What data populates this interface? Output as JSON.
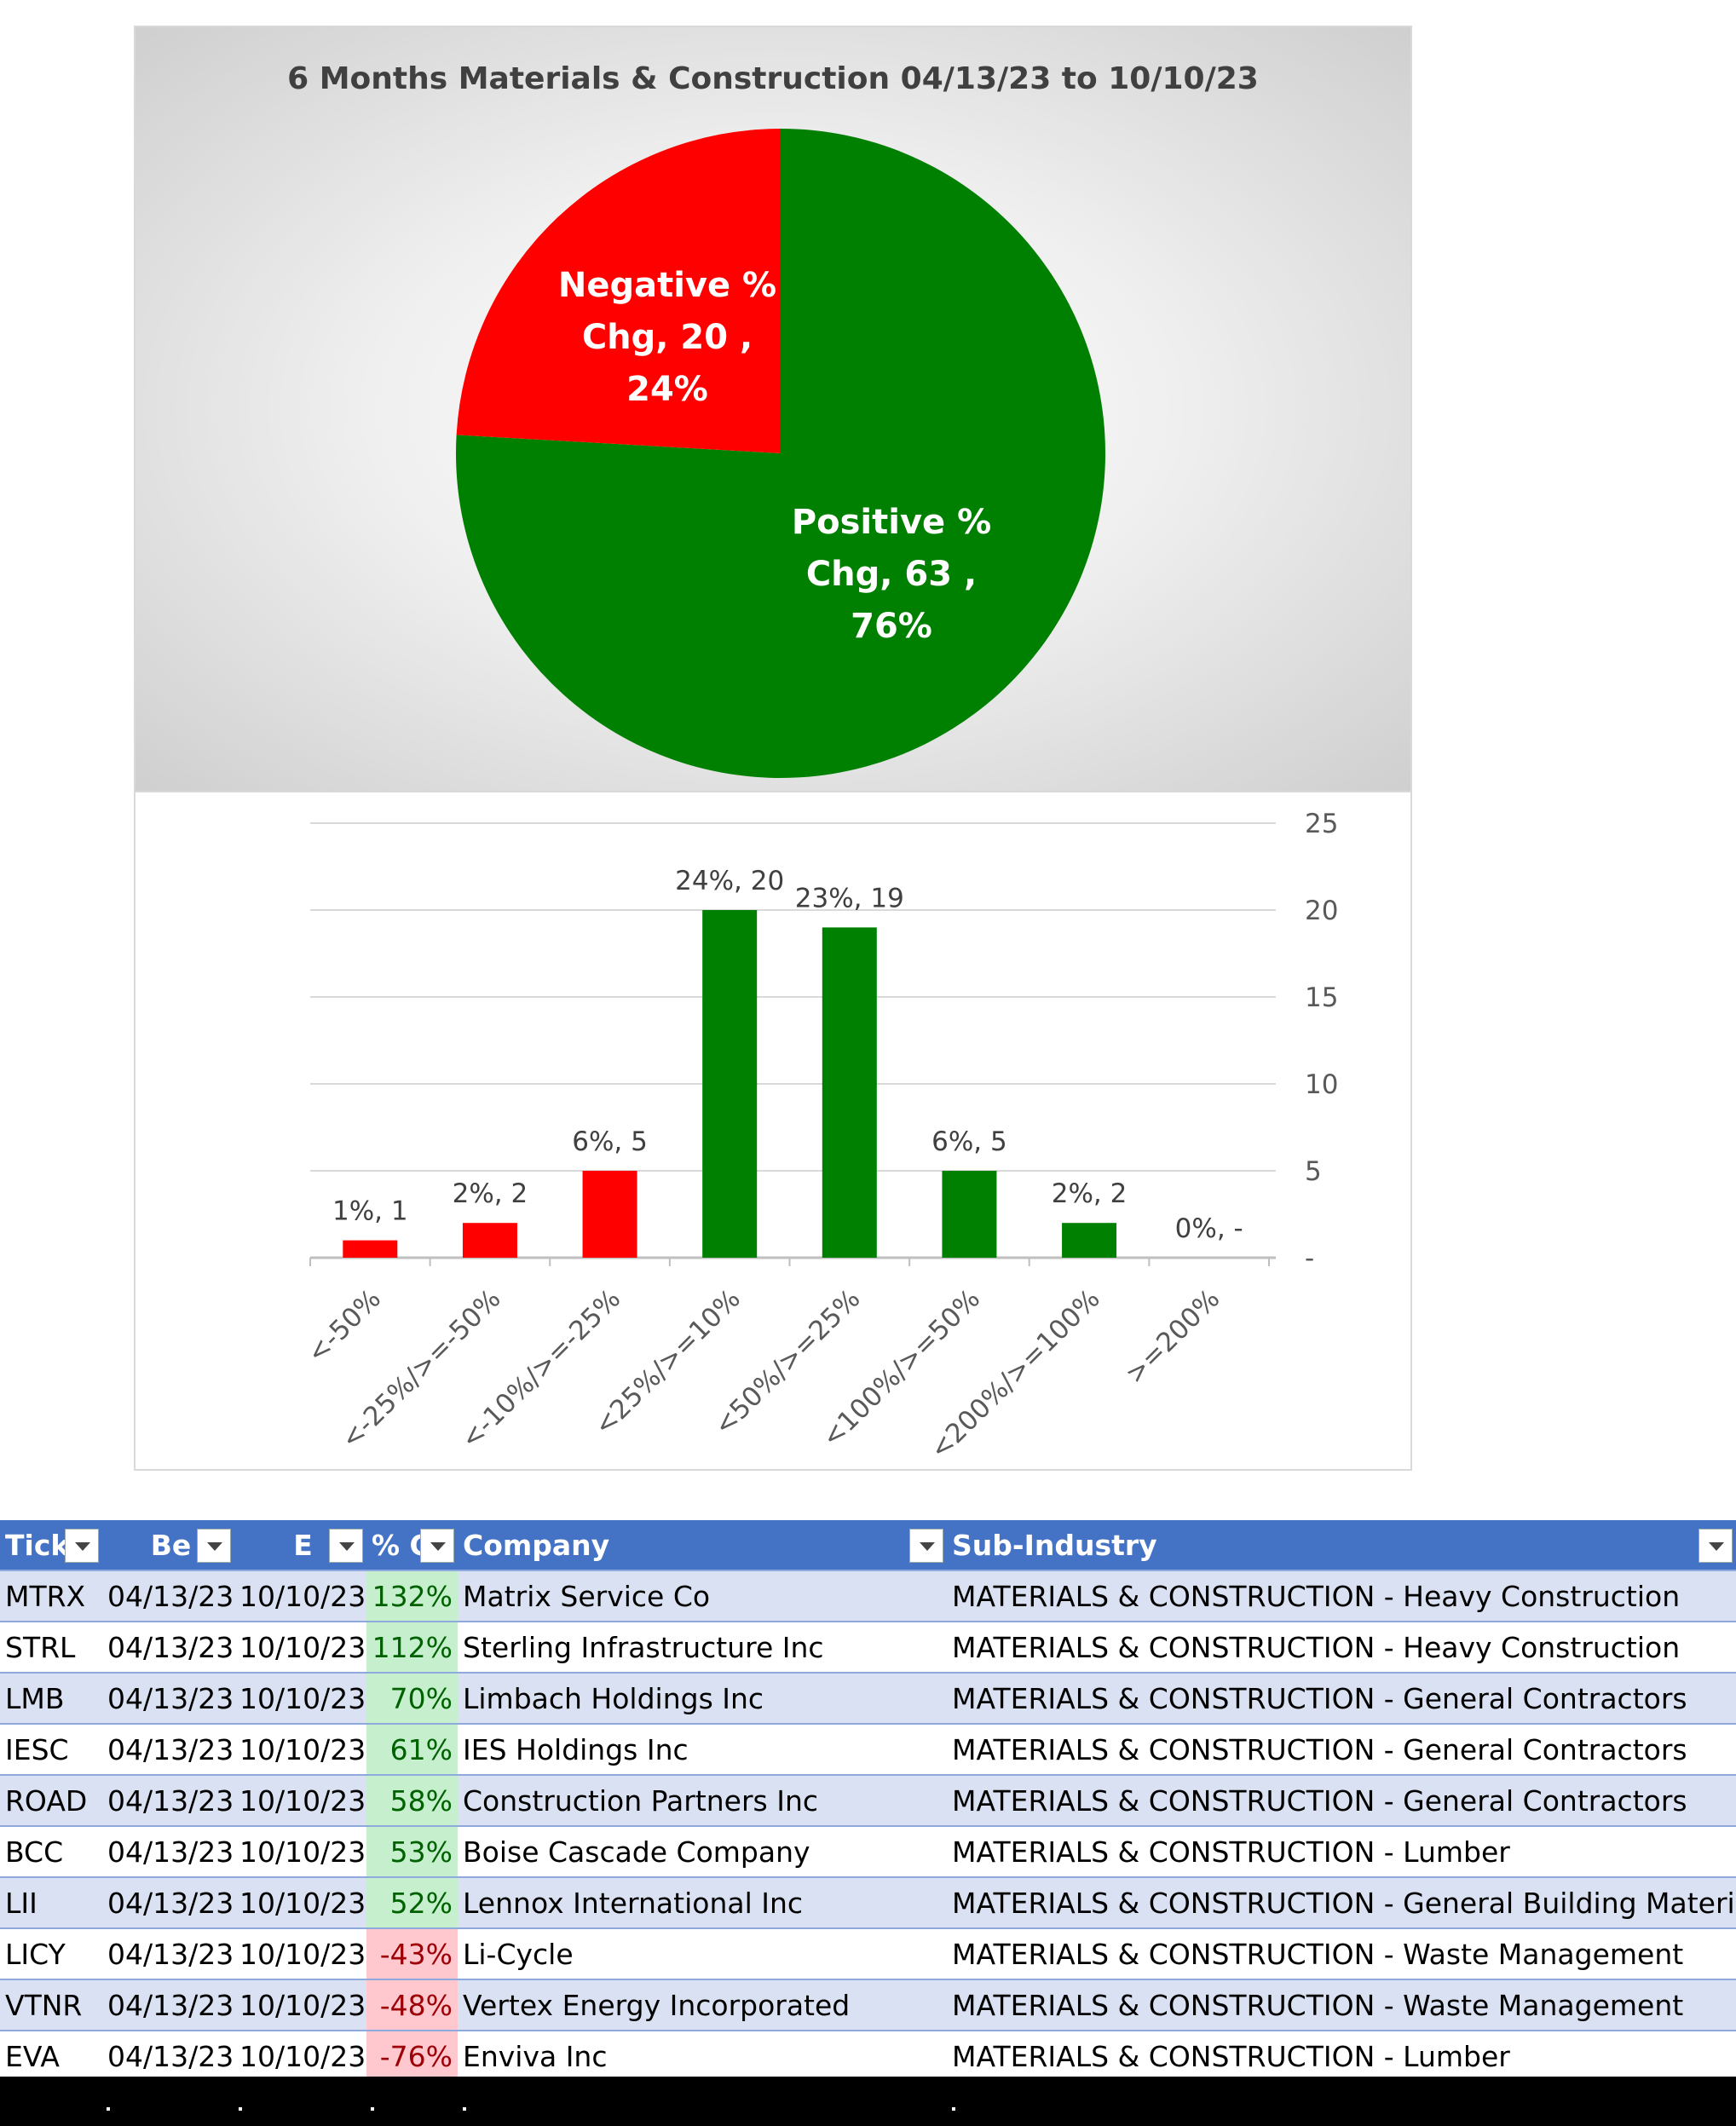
{
  "chart_data": [
    {
      "type": "pie",
      "title": "6 Months Materials & Construction 04/13/23 to 10/10/23",
      "slices": [
        {
          "label_lines": [
            "Positive %",
            "Chg,  63 ,",
            "76%"
          ],
          "name": "Positive % Chg",
          "value": 63,
          "percent": 76,
          "color": "#008000"
        },
        {
          "label_lines": [
            "Negative %",
            "Chg,  20 ,",
            "24%"
          ],
          "name": "Negative % Chg",
          "value": 20,
          "percent": 24,
          "color": "#ff0000"
        }
      ]
    },
    {
      "type": "bar",
      "categories": [
        "<-50%",
        "<-25%/>=-50%",
        "<-10%/>=-25%",
        "<25%/>=10%",
        "<50%/>=25%",
        "<100%/>=50%",
        "<200%/>=100%",
        ">=200%"
      ],
      "values": [
        1,
        2,
        5,
        20,
        19,
        5,
        2,
        0
      ],
      "data_labels": [
        "1%,  1",
        "2%,  2",
        "6%,  5",
        "24%,  20",
        "23%,  19",
        "6%,  5",
        "2%,  2",
        "0%,  -"
      ],
      "colors": [
        "#ff0000",
        "#ff0000",
        "#ff0000",
        "#008000",
        "#008000",
        "#008000",
        "#008000",
        "#008000"
      ],
      "ylim": [
        0,
        25
      ],
      "yticks": [
        25,
        20,
        15,
        10,
        5,
        0
      ],
      "ytick_labels": [
        "25",
        "20",
        "15",
        "10",
        "5",
        "-"
      ],
      "y_axis_side": "right",
      "grid": true
    }
  ],
  "table": {
    "headers": [
      "Tick",
      "Be",
      "E",
      "% C",
      "Company",
      "Sub-Industry"
    ],
    "rows": [
      {
        "ticker": "MTRX",
        "begin": "04/13/23",
        "end": "10/10/23",
        "pct": "132%",
        "sign": "pos",
        "company": "Matrix Service Co",
        "sub": "MATERIALS & CONSTRUCTION - Heavy Construction"
      },
      {
        "ticker": "STRL",
        "begin": "04/13/23",
        "end": "10/10/23",
        "pct": "112%",
        "sign": "pos",
        "company": "Sterling Infrastructure Inc",
        "sub": "MATERIALS & CONSTRUCTION - Heavy Construction"
      },
      {
        "ticker": "LMB",
        "begin": "04/13/23",
        "end": "10/10/23",
        "pct": "70%",
        "sign": "pos",
        "company": "Limbach Holdings Inc",
        "sub": "MATERIALS & CONSTRUCTION - General Contractors"
      },
      {
        "ticker": "IESC",
        "begin": "04/13/23",
        "end": "10/10/23",
        "pct": "61%",
        "sign": "pos",
        "company": "IES Holdings Inc",
        "sub": "MATERIALS & CONSTRUCTION - General Contractors"
      },
      {
        "ticker": "ROAD",
        "begin": "04/13/23",
        "end": "10/10/23",
        "pct": "58%",
        "sign": "pos",
        "company": "Construction Partners Inc",
        "sub": "MATERIALS & CONSTRUCTION - General Contractors"
      },
      {
        "ticker": "BCC",
        "begin": "04/13/23",
        "end": "10/10/23",
        "pct": "53%",
        "sign": "pos",
        "company": "Boise Cascade Company",
        "sub": "MATERIALS & CONSTRUCTION - Lumber"
      },
      {
        "ticker": "LII",
        "begin": "04/13/23",
        "end": "10/10/23",
        "pct": "52%",
        "sign": "pos",
        "company": "Lennox International Inc",
        "sub": "MATERIALS & CONSTRUCTION - General Building Materials"
      },
      {
        "ticker": "LICY",
        "begin": "04/13/23",
        "end": "10/10/23",
        "pct": "-43%",
        "sign": "neg",
        "company": "Li-Cycle",
        "sub": "MATERIALS & CONSTRUCTION - Waste Management"
      },
      {
        "ticker": "VTNR",
        "begin": "04/13/23",
        "end": "10/10/23",
        "pct": "-48%",
        "sign": "neg",
        "company": "Vertex Energy Incorporated",
        "sub": "MATERIALS & CONSTRUCTION - Waste Management"
      },
      {
        "ticker": "EVA",
        "begin": "04/13/23",
        "end": "10/10/23",
        "pct": "-76%",
        "sign": "neg",
        "company": "Enviva Inc",
        "sub": "MATERIALS & CONSTRUCTION - Lumber"
      }
    ]
  }
}
